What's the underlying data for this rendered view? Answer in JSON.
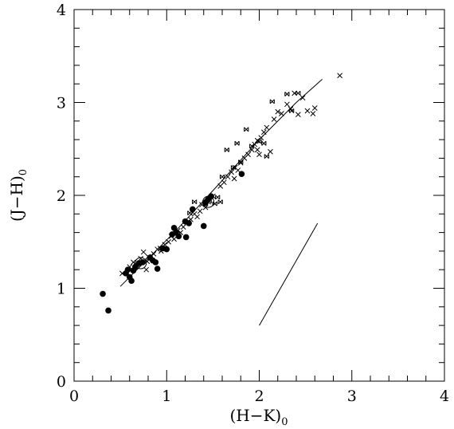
{
  "chart_data": {
    "type": "scatter",
    "xlabel": "(H−K)",
    "xlabel_sub": "0",
    "ylabel": "(J−H)",
    "ylabel_sub": "0",
    "xlim": [
      0,
      4
    ],
    "ylim": [
      0,
      4
    ],
    "x_ticks": [
      "0",
      "1",
      "2",
      "3",
      "4"
    ],
    "y_ticks": [
      "0",
      "1",
      "2",
      "3",
      "4"
    ],
    "grid": false,
    "series": [
      {
        "marker": "filled-circle",
        "points": [
          [
            0.31,
            0.94
          ],
          [
            0.37,
            0.76
          ],
          [
            0.56,
            1.16
          ],
          [
            0.58,
            1.2
          ],
          [
            0.6,
            1.12
          ],
          [
            0.62,
            1.08
          ],
          [
            0.64,
            1.19
          ],
          [
            0.66,
            1.23
          ],
          [
            0.7,
            1.27
          ],
          [
            0.74,
            1.28
          ],
          [
            0.82,
            1.33
          ],
          [
            0.85,
            1.3
          ],
          [
            0.88,
            1.28
          ],
          [
            0.9,
            1.21
          ],
          [
            0.96,
            1.43
          ],
          [
            1.0,
            1.42
          ],
          [
            1.06,
            1.58
          ],
          [
            1.08,
            1.65
          ],
          [
            1.1,
            1.6
          ],
          [
            1.13,
            1.56
          ],
          [
            1.2,
            1.72
          ],
          [
            1.21,
            1.55
          ],
          [
            1.24,
            1.7
          ],
          [
            1.28,
            1.85
          ],
          [
            1.4,
            1.67
          ],
          [
            1.42,
            1.92
          ],
          [
            1.45,
            1.96
          ],
          [
            1.48,
            1.99
          ],
          [
            1.81,
            2.23
          ]
        ]
      },
      {
        "marker": "cross",
        "points": [
          [
            0.52,
            1.16
          ],
          [
            0.6,
            1.23
          ],
          [
            0.64,
            1.28
          ],
          [
            0.68,
            1.25
          ],
          [
            0.72,
            1.32
          ],
          [
            0.75,
            1.39
          ],
          [
            0.78,
            1.2
          ],
          [
            0.8,
            1.34
          ],
          [
            0.86,
            1.37
          ],
          [
            0.9,
            1.42
          ],
          [
            0.94,
            1.4
          ],
          [
            0.98,
            1.47
          ],
          [
            1.02,
            1.5
          ],
          [
            1.05,
            1.56
          ],
          [
            1.08,
            1.53
          ],
          [
            1.12,
            1.62
          ],
          [
            1.15,
            1.6
          ],
          [
            1.18,
            1.66
          ],
          [
            1.22,
            1.71
          ],
          [
            1.26,
            1.74
          ],
          [
            1.3,
            1.8
          ],
          [
            1.33,
            1.77
          ],
          [
            1.36,
            1.83
          ],
          [
            1.38,
            1.9
          ],
          [
            1.42,
            1.87
          ],
          [
            1.45,
            1.93
          ],
          [
            1.5,
            1.99
          ],
          [
            1.58,
            2.1
          ],
          [
            1.62,
            2.14
          ],
          [
            1.66,
            2.2
          ],
          [
            1.7,
            2.25
          ],
          [
            1.74,
            2.3
          ],
          [
            1.77,
            2.27
          ],
          [
            1.8,
            2.35
          ],
          [
            1.84,
            2.4
          ],
          [
            1.88,
            2.44
          ],
          [
            1.92,
            2.49
          ],
          [
            1.95,
            2.55
          ],
          [
            1.98,
            2.59
          ],
          [
            2.02,
            2.62
          ],
          [
            2.05,
            2.68
          ],
          [
            2.08,
            2.73
          ],
          [
            2.12,
            2.47
          ],
          [
            2.16,
            2.82
          ],
          [
            2.2,
            2.9
          ],
          [
            2.24,
            2.88
          ],
          [
            2.3,
            2.98
          ],
          [
            2.34,
            2.93
          ],
          [
            2.38,
            3.1
          ],
          [
            2.42,
            2.87
          ],
          [
            2.47,
            3.05
          ],
          [
            2.52,
            2.91
          ],
          [
            2.58,
            2.88
          ],
          [
            2.6,
            2.94
          ],
          [
            2.87,
            3.29
          ],
          [
            1.98,
            2.49
          ],
          [
            2.0,
            2.44
          ],
          [
            1.73,
            2.18
          ],
          [
            0.93,
            1.43
          ],
          [
            0.79,
            1.29
          ]
        ]
      },
      {
        "marker": "cross-box",
        "points": [
          [
            1.25,
            1.81
          ],
          [
            1.3,
            1.93
          ],
          [
            1.46,
            1.94
          ],
          [
            1.52,
            1.91
          ],
          [
            1.55,
            1.98
          ],
          [
            1.58,
            1.93
          ],
          [
            1.6,
            2.2
          ],
          [
            1.65,
            2.49
          ],
          [
            1.72,
            2.3
          ],
          [
            1.76,
            2.56
          ],
          [
            1.8,
            2.36
          ],
          [
            1.86,
            2.71
          ],
          [
            1.92,
            2.53
          ],
          [
            2.0,
            2.58
          ],
          [
            2.05,
            2.56
          ],
          [
            2.08,
            2.42
          ],
          [
            2.14,
            3.01
          ],
          [
            2.3,
            3.09
          ],
          [
            2.35,
            2.91
          ],
          [
            2.42,
            3.1
          ]
        ]
      }
    ],
    "lines": [
      {
        "style": "solid",
        "points": [
          [
            0.5,
            1.02
          ],
          [
            1.1,
            1.62
          ],
          [
            1.6,
            2.16
          ],
          [
            2.0,
            2.6
          ],
          [
            2.4,
            3.0
          ],
          [
            2.68,
            3.25
          ]
        ]
      },
      {
        "style": "solid",
        "points": [
          [
            2.0,
            0.6
          ],
          [
            2.63,
            1.7
          ]
        ]
      }
    ],
    "open_circles": [
      {
        "x": 0.72,
        "y": 1.27
      },
      {
        "x": 1.45,
        "y": 1.93
      }
    ]
  }
}
